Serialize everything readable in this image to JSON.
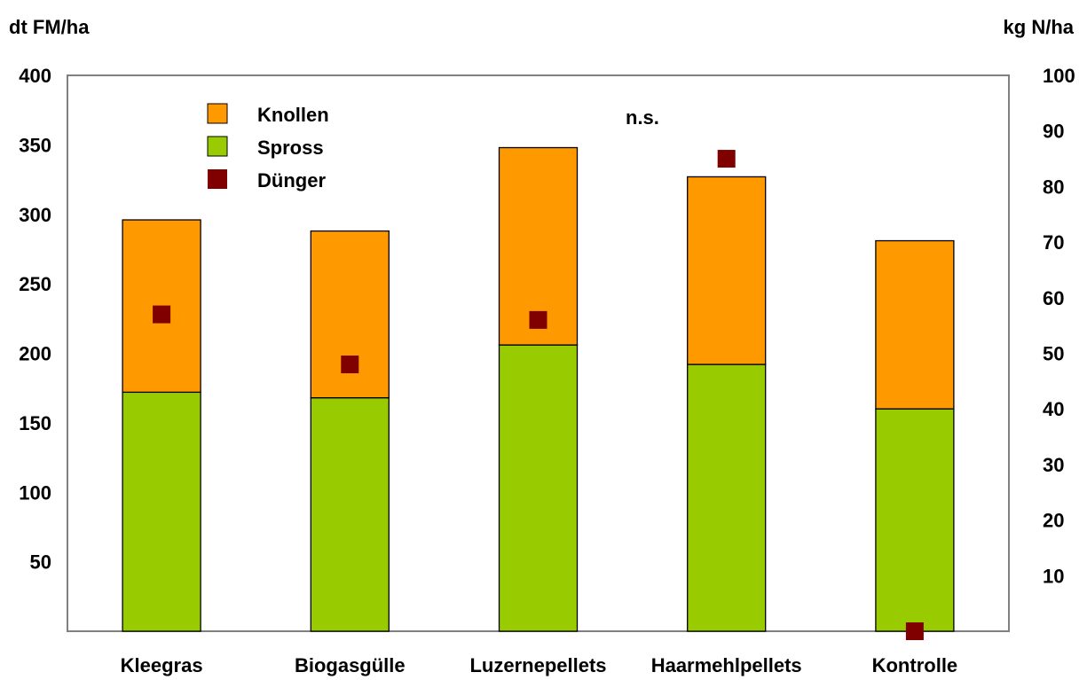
{
  "chart_data": {
    "type": "bar",
    "stacked": true,
    "categories": [
      "Kleegras",
      "Biogasgülle",
      "Luzernepellets",
      "Haarmehlpellets",
      "Kontrolle"
    ],
    "series": [
      {
        "name": "Spross",
        "axis": "left",
        "color": "#99cc00",
        "values": [
          172,
          168,
          206,
          192,
          160
        ]
      },
      {
        "name": "Knollen",
        "axis": "left",
        "color": "#ff9900",
        "values": [
          124,
          120,
          142,
          135,
          121
        ]
      },
      {
        "name": "Dünger",
        "axis": "right",
        "type": "scatter",
        "color": "#800000",
        "values": [
          57,
          48,
          56,
          85,
          0
        ]
      }
    ],
    "ylabel_left": "dt FM/ha",
    "ylabel_right": "kg N/ha",
    "ylim_left": [
      0,
      400
    ],
    "ylim_right": [
      0,
      100
    ],
    "yticks_left": [
      50,
      100,
      150,
      200,
      250,
      300,
      350,
      400
    ],
    "yticks_right": [
      10,
      20,
      30,
      40,
      50,
      60,
      70,
      80,
      90,
      100
    ],
    "annotation": "n.s.",
    "legend_order": [
      "Knollen",
      "Spross",
      "Dünger"
    ],
    "legend_position": "top-left",
    "grid": false
  }
}
